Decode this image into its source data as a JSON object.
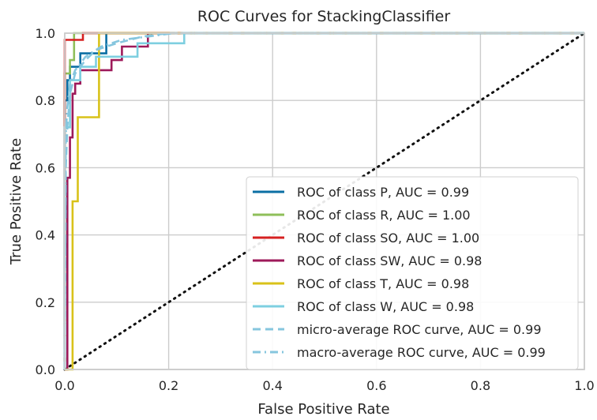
{
  "chart_data": {
    "type": "line",
    "title": "ROC Curves for StackingClassifier",
    "xlabel": "False Positive Rate",
    "ylabel": "True Positive Rate",
    "xlim": [
      0.0,
      1.0
    ],
    "ylim": [
      0.0,
      1.0
    ],
    "xticks": [
      "0.0",
      "0.2",
      "0.4",
      "0.6",
      "0.8",
      "1.0"
    ],
    "yticks": [
      "0.0",
      "0.2",
      "0.4",
      "0.6",
      "0.8",
      "1.0"
    ],
    "grid": true,
    "legend_position": "lower-right",
    "diagonal": {
      "x": [
        0,
        1
      ],
      "y": [
        0,
        1
      ],
      "color": "#111111",
      "style": "dotted"
    },
    "series": [
      {
        "name": "ROC of class P, AUC = 0.99",
        "color": "#0b6fa4",
        "style": "solid",
        "x": [
          0,
          0,
          0.005,
          0.005,
          0.01,
          0.01,
          0.03,
          0.03,
          0.08,
          0.08,
          1.0
        ],
        "y": [
          0,
          0.8,
          0.8,
          0.86,
          0.86,
          0.9,
          0.9,
          0.94,
          0.94,
          1.0,
          1.0
        ]
      },
      {
        "name": "ROC of class R, AUC = 1.00",
        "color": "#8fbf5a",
        "style": "solid",
        "x": [
          0,
          0,
          0.01,
          0.01,
          0.018,
          0.018,
          1.0
        ],
        "y": [
          0,
          0.88,
          0.88,
          0.92,
          0.92,
          1.0,
          1.0
        ]
      },
      {
        "name": "ROC of class SO, AUC = 1.00",
        "color": "#d62020",
        "style": "solid",
        "x": [
          0,
          0,
          0.035,
          0.035,
          1.0
        ],
        "y": [
          0,
          0.98,
          0.98,
          1.0,
          1.0
        ]
      },
      {
        "name": "ROC of class SW, AUC = 0.98",
        "color": "#9e1a5a",
        "style": "solid",
        "x": [
          0,
          0.005,
          0.005,
          0.01,
          0.01,
          0.015,
          0.015,
          0.02,
          0.02,
          0.03,
          0.03,
          0.09,
          0.09,
          0.11,
          0.11,
          0.16,
          0.16,
          1.0
        ],
        "y": [
          0,
          0,
          0.57,
          0.57,
          0.69,
          0.69,
          0.82,
          0.82,
          0.85,
          0.85,
          0.89,
          0.89,
          0.92,
          0.92,
          0.96,
          0.96,
          1.0,
          1.0
        ]
      },
      {
        "name": "ROC of class T, AUC = 0.98",
        "color": "#d9c21a",
        "style": "solid",
        "x": [
          0,
          0.015,
          0.015,
          0.025,
          0.025,
          0.066,
          0.066,
          1.0
        ],
        "y": [
          0,
          0,
          0.5,
          0.5,
          0.75,
          0.75,
          1.0,
          1.0
        ]
      },
      {
        "name": "ROC of class W, AUC = 0.98",
        "color": "#7ecfe0",
        "style": "solid",
        "x": [
          0,
          0,
          0.01,
          0.01,
          0.03,
          0.03,
          0.06,
          0.06,
          0.14,
          0.14,
          0.23,
          0.23,
          1.0
        ],
        "y": [
          0,
          0.72,
          0.72,
          0.86,
          0.86,
          0.9,
          0.9,
          0.93,
          0.93,
          0.97,
          0.97,
          1.0,
          1.0
        ]
      },
      {
        "name": "micro-average ROC curve, AUC = 0.99",
        "color": "#86c6de",
        "style": "dashed",
        "x": [
          0,
          0.002,
          0.005,
          0.01,
          0.02,
          0.04,
          0.06,
          0.1,
          0.15,
          0.2,
          1.0
        ],
        "y": [
          0,
          0.6,
          0.72,
          0.82,
          0.88,
          0.92,
          0.95,
          0.97,
          0.99,
          1.0,
          1.0
        ]
      },
      {
        "name": "macro-average ROC curve, AUC = 0.99",
        "color": "#86c6de",
        "style": "dashdot",
        "x": [
          0,
          0.002,
          0.005,
          0.01,
          0.02,
          0.04,
          0.07,
          0.11,
          0.16,
          0.21,
          1.0
        ],
        "y": [
          0,
          0.7,
          0.78,
          0.85,
          0.89,
          0.93,
          0.96,
          0.98,
          0.99,
          1.0,
          1.0
        ]
      }
    ]
  }
}
